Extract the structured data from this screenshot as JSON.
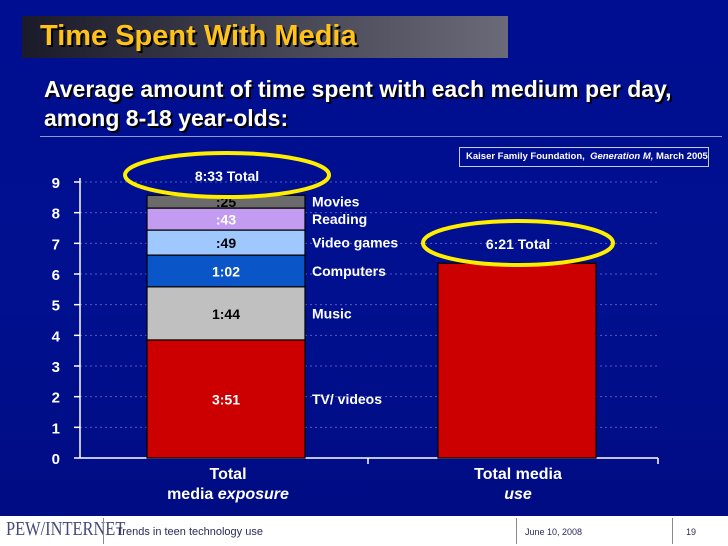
{
  "header": {
    "title": "Time Spent With Media",
    "subtitle": "Average amount of time spent with each medium per day, among 8-18 year-olds:"
  },
  "source": {
    "org": "Kaiser Family Foundation,",
    "report": "Generation M,",
    "date": "March 2005"
  },
  "footer": {
    "logo": "PEW/INTERNET",
    "topic": "Trends in teen technology use",
    "date": "June 10, 2008",
    "page": "19"
  },
  "colors": {
    "title_text": "#ffc21a",
    "highlight_ellipse": "#ffee00",
    "background": "#000e91"
  },
  "chart_data": {
    "type": "bar",
    "stacked": true,
    "ylim": [
      0,
      9
    ],
    "yticks": [
      0,
      1,
      2,
      3,
      4,
      5,
      6,
      7,
      8,
      9
    ],
    "grid": true,
    "categories": [
      {
        "line1": "Total",
        "line2_prefix": "media ",
        "line2_em": "exposure"
      },
      {
        "line1": "Total media",
        "line2_prefix": "",
        "line2_em": "use"
      }
    ],
    "series": [
      {
        "name": "TV/ videos",
        "label": "3:51",
        "color": "#cc0000",
        "values": [
          3.85,
          0
        ]
      },
      {
        "name": "Music",
        "label": "1:44",
        "color": "#c0c0c0",
        "values": [
          1.7333,
          0
        ]
      },
      {
        "name": "Computers",
        "label": "1:02",
        "color": "#0a55c8",
        "values": [
          1.0333,
          0
        ]
      },
      {
        "name": "Video games",
        "label": ":49",
        "color": "#9fc8ff",
        "values": [
          0.8167,
          0
        ]
      },
      {
        "name": "Reading",
        "label": ":43",
        "color": "#c39cf2",
        "values": [
          0.7167,
          0
        ]
      },
      {
        "name": "Movies",
        "label": ":25",
        "color": "#6b6b6b",
        "values": [
          0.4167,
          0
        ]
      },
      {
        "name": "",
        "label": "",
        "color": "#cc0000",
        "values": [
          0,
          6.35
        ]
      }
    ],
    "totals": [
      {
        "label": "8:33 Total",
        "value": 8.55
      },
      {
        "label": "6:21 Total",
        "value": 6.35
      }
    ]
  }
}
